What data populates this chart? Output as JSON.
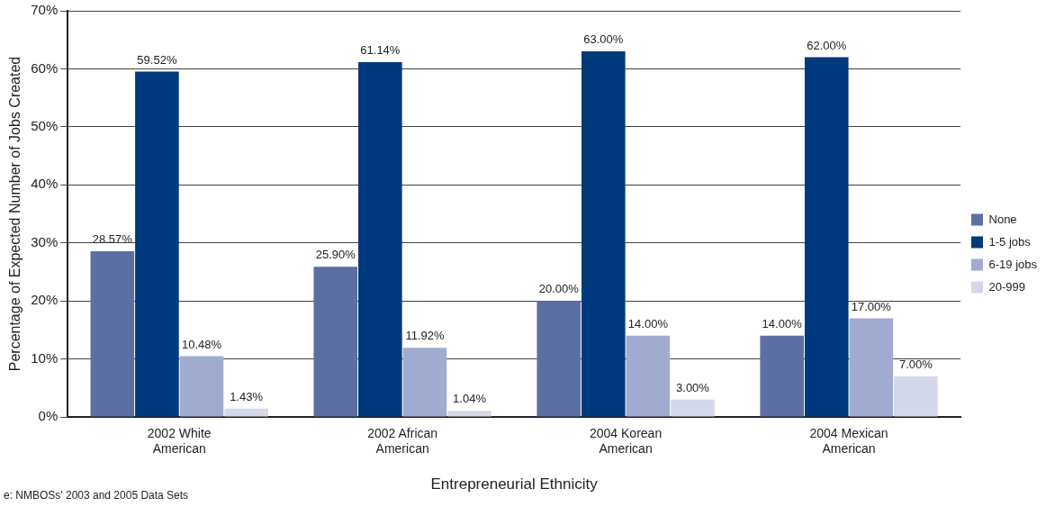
{
  "chart_data": {
    "type": "bar",
    "xlabel": "Entrepreneurial Ethnicity",
    "ylabel": "Percentage of Expected Number of Jobs Created",
    "categories": [
      "2002 White American",
      "2002 African American",
      "2004 Korean American",
      "2004 Mexican American"
    ],
    "series": [
      {
        "name": "None",
        "color": "#5b6fa3",
        "values": [
          28.57,
          25.9,
          20,
          14
        ],
        "value_labels": [
          "28.57%",
          "25.90%",
          "20.00%",
          "14.00%"
        ]
      },
      {
        "name": "1-5 jobs",
        "color": "#003a7c",
        "values": [
          59.52,
          61.14,
          63,
          62
        ],
        "value_labels": [
          "59.52%",
          "61.14%",
          "63.00%",
          "62.00%"
        ]
      },
      {
        "name": "6-19 jobs",
        "color": "#a1abcf",
        "values": [
          10.48,
          11.92,
          14,
          17
        ],
        "value_labels": [
          "10.48%",
          "11.92%",
          "14.00%",
          "17.00%"
        ]
      },
      {
        "name": "20-999",
        "color": "#d4d8e8",
        "values": [
          1.43,
          1.04,
          3,
          7
        ],
        "value_labels": [
          "1.43%",
          "1.04%",
          "3.00%",
          "7.00%"
        ]
      }
    ],
    "ylim": [
      0,
      70
    ],
    "yticks": [
      {
        "value": 0,
        "label": "0%"
      },
      {
        "value": 10,
        "label": "10%"
      },
      {
        "value": 20,
        "label": "20%"
      },
      {
        "value": 30,
        "label": "30%"
      },
      {
        "value": 40,
        "label": "40%"
      },
      {
        "value": 50,
        "label": "50%"
      },
      {
        "value": 60,
        "label": "60%"
      },
      {
        "value": 70,
        "label": "70%"
      }
    ],
    "grid": "y",
    "legend": "right",
    "annotations": [
      "e: NMBOSs' 2003 and 2005 Data Sets"
    ]
  }
}
